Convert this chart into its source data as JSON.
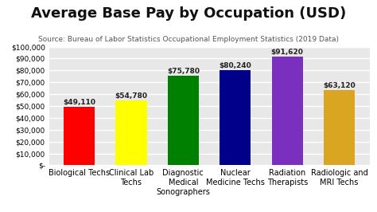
{
  "title": "Average Base Pay by Occupation (USD)",
  "subtitle": "Source: Bureau of Labor Statistics Occupational Employment Statistics (2019 Data)",
  "categories": [
    "Biological Techs",
    "Clinical Lab\nTechs",
    "Diagnostic\nMedical\nSonographers",
    "Nuclear\nMedicine Techs",
    "Radiation\nTherapists",
    "Radiologic and\nMRI Techs"
  ],
  "values": [
    49110,
    54780,
    75780,
    80240,
    91620,
    63120
  ],
  "bar_colors": [
    "#ff0000",
    "#ffff00",
    "#008000",
    "#00008b",
    "#7b2fbe",
    "#daa520"
  ],
  "value_labels": [
    "$49,110",
    "$54,780",
    "$75,780",
    "$80,240",
    "$91,620",
    "$63,120"
  ],
  "ylim": [
    0,
    100000
  ],
  "yticks": [
    0,
    10000,
    20000,
    30000,
    40000,
    50000,
    60000,
    70000,
    80000,
    90000,
    100000
  ],
  "ytick_labels": [
    "$-",
    "$10,000",
    "$20,000",
    "$30,000",
    "$40,000",
    "$50,000",
    "$60,000",
    "$70,000",
    "$80,000",
    "$90,000",
    "$100,000"
  ],
  "background_color": "#ffffff",
  "plot_bg_color": "#e8e8e8",
  "grid_color": "#ffffff",
  "title_fontsize": 13,
  "subtitle_fontsize": 6.5,
  "bar_label_fontsize": 6.5,
  "tick_fontsize": 6.5,
  "xlabel_fontsize": 7
}
